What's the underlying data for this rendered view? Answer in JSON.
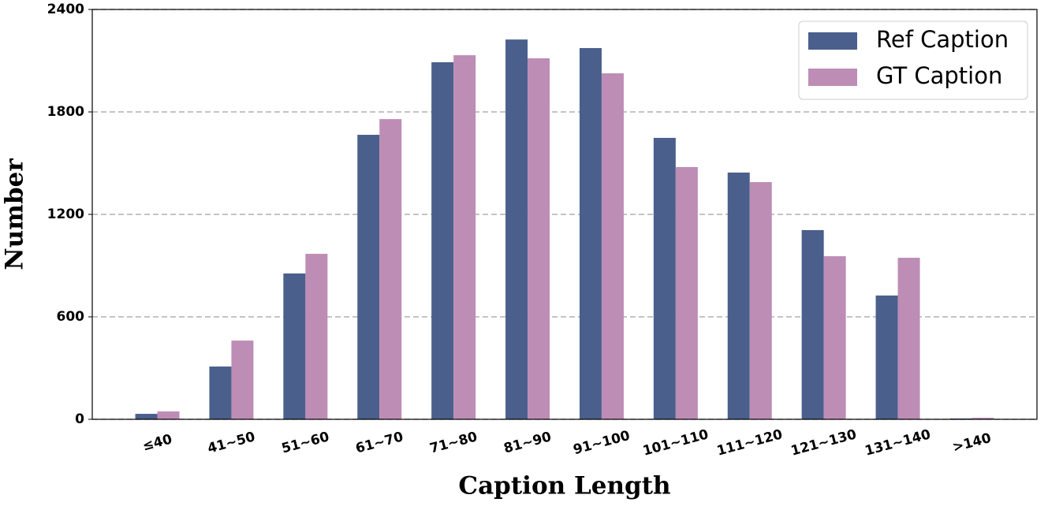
{
  "chart_data": {
    "type": "bar",
    "x_label": "Caption Length",
    "y_label": "Number",
    "categories": [
      "≤40",
      "41~50",
      "51~60",
      "61~70",
      "71~80",
      "81~90",
      "91~100",
      "101~110",
      "111~120",
      "121~130",
      "131~140",
      ">140"
    ],
    "series": [
      {
        "name": "Ref Caption",
        "color": "#4a5f8c",
        "values": [
          32,
          309,
          854,
          1666,
          2091,
          2224,
          2174,
          1648,
          1445,
          1108,
          725,
          5
        ]
      },
      {
        "name": "GT Caption",
        "color": "#bd8db5",
        "values": [
          46,
          461,
          969,
          1758,
          2132,
          2114,
          2026,
          1477,
          1389,
          955,
          946,
          9
        ]
      }
    ],
    "ylim": [
      0,
      2400
    ],
    "yticks": [
      0,
      600,
      1200,
      1800,
      2400
    ],
    "grid": true,
    "legend": "upper right"
  }
}
